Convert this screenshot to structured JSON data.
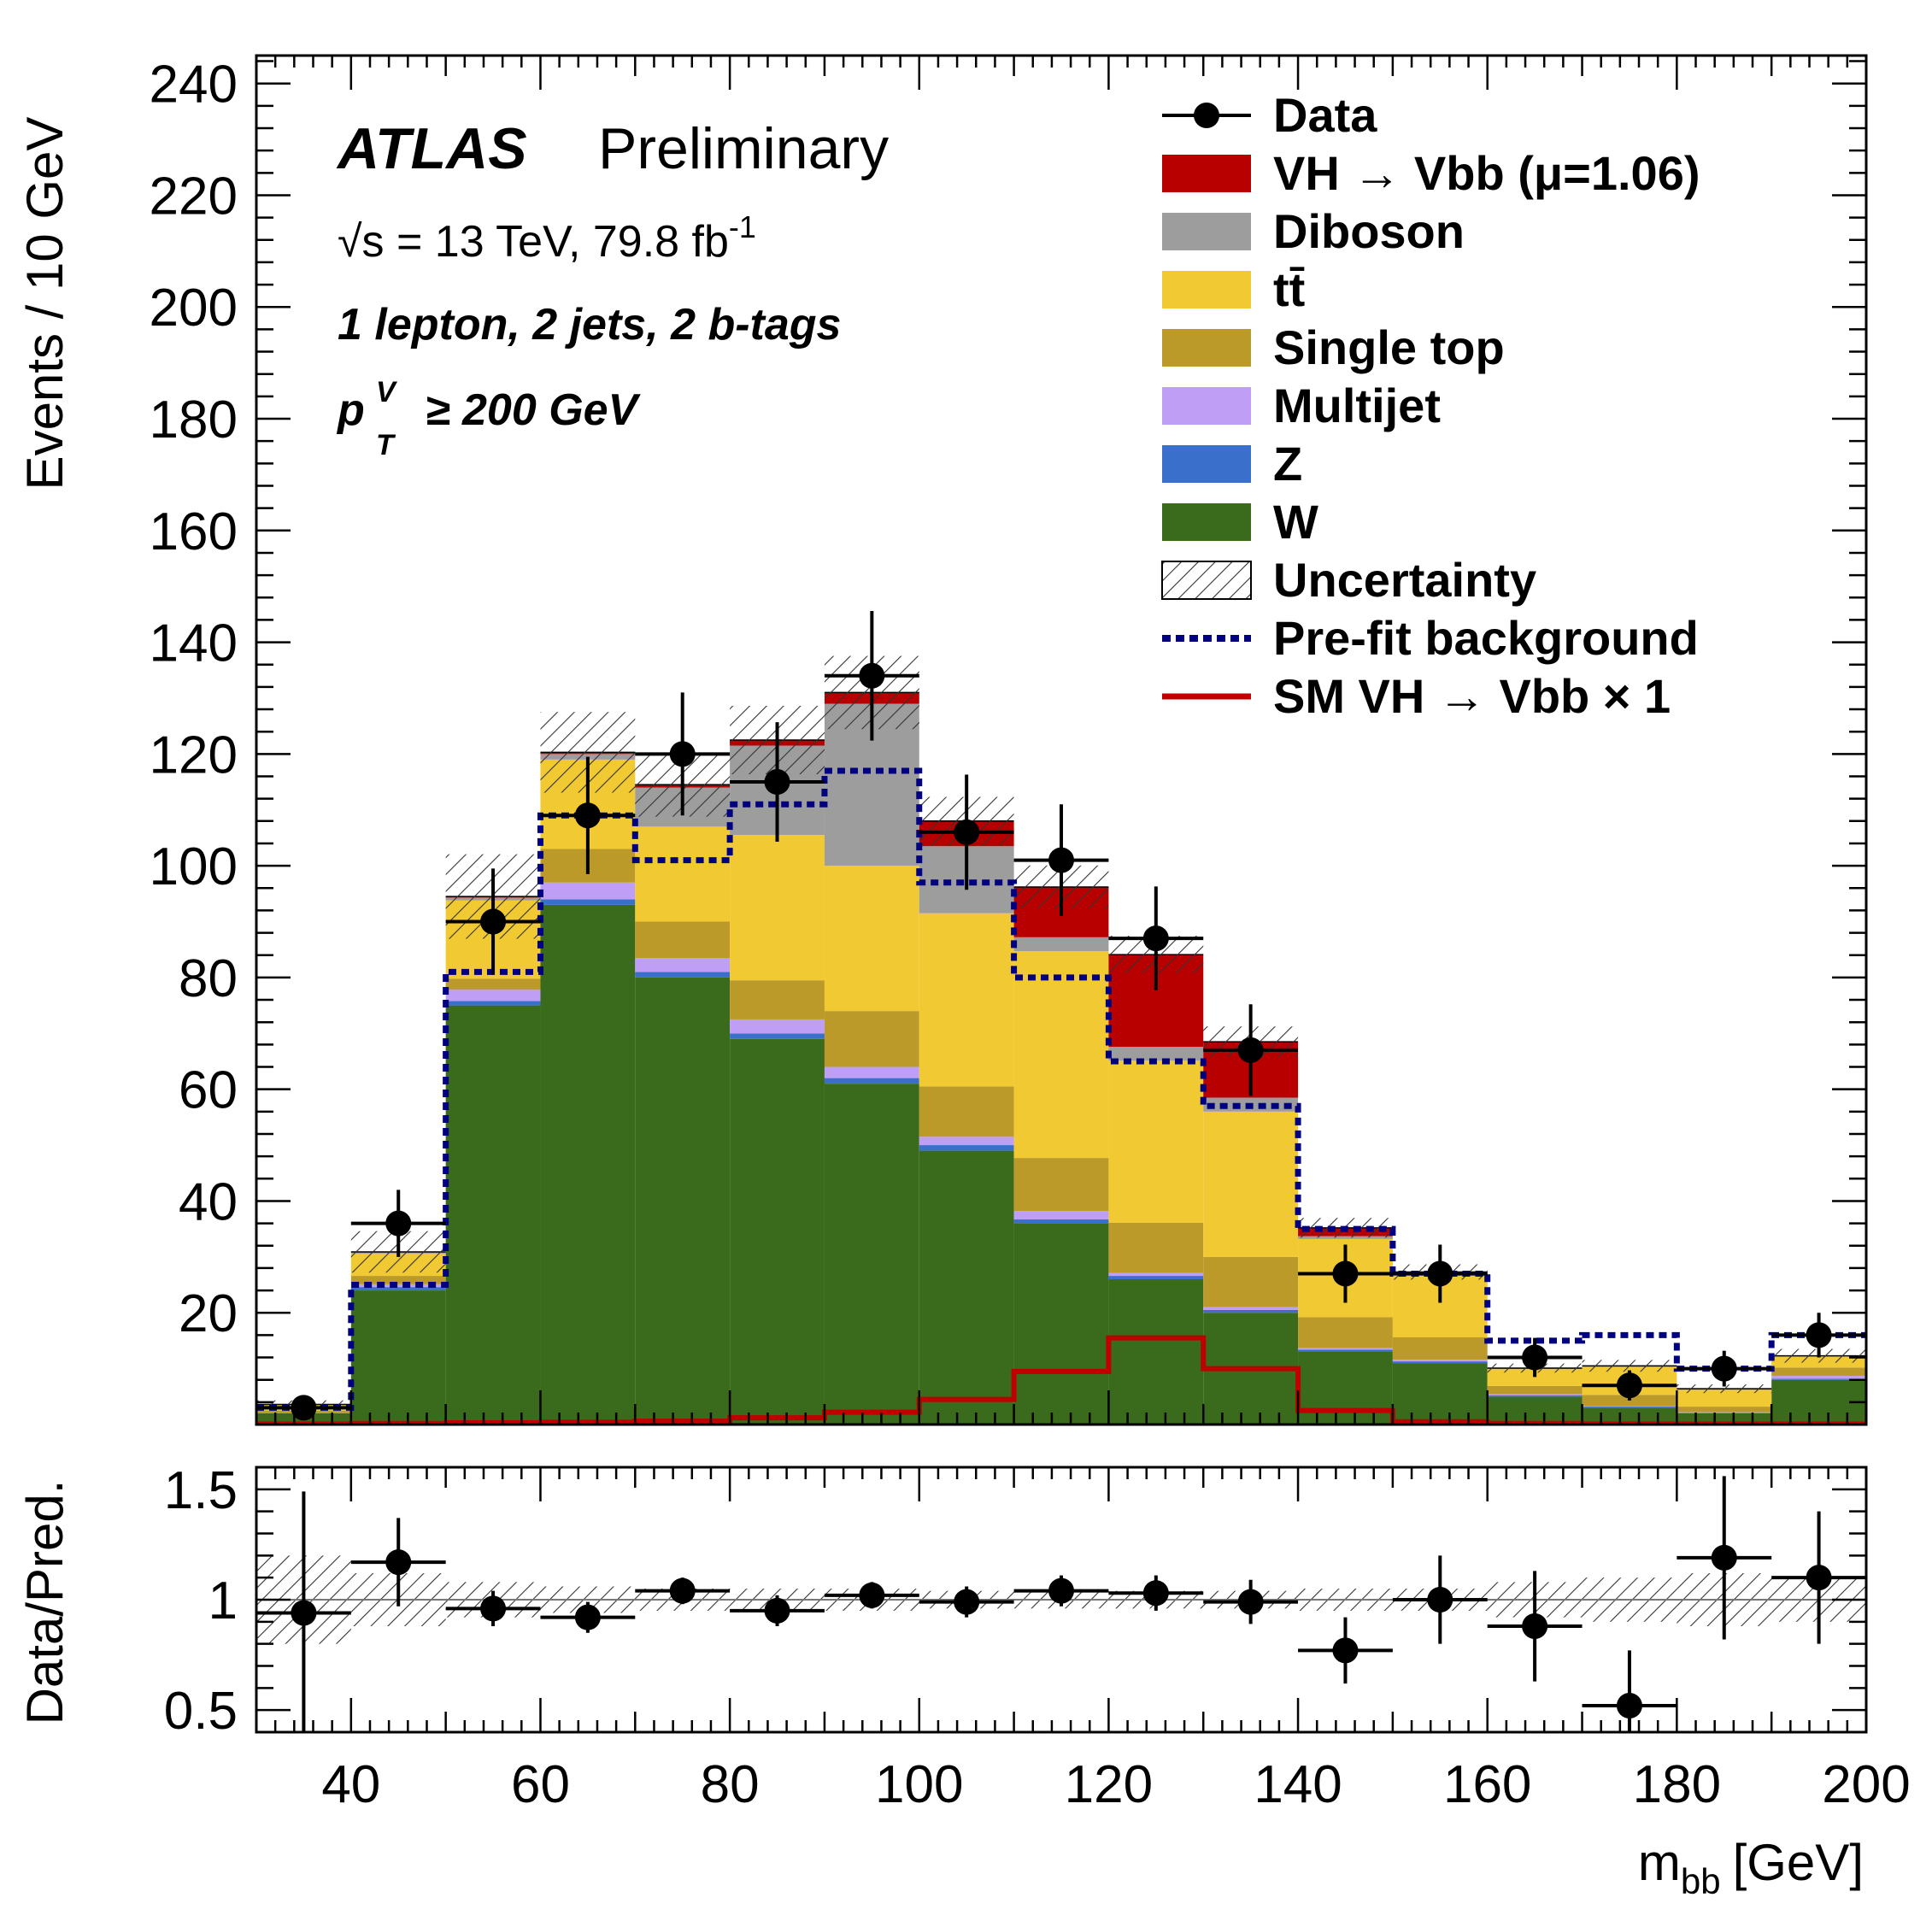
{
  "chart_data": {
    "type": "stacked-histogram",
    "experiment": "ATLAS",
    "status": "Preliminary",
    "energy_lumi_prefix": "√s = 13 TeV, 79.8 fb",
    "lumi_exponent": "-1",
    "region": "1 lepton, 2 jets, 2 b-tags",
    "ptv_symbol": "p",
    "ptv_sub": "T",
    "ptv_sup": "V",
    "ptv_cut": "≥ 200 GeV",
    "xlabel": "m",
    "xlabel_sub": "bb",
    "xlabel_unit": "[GeV]",
    "ylabel": "Events / 10 GeV",
    "ratio_ylabel": "Data/Pred.",
    "xlim": [
      30,
      200
    ],
    "ylim": [
      0,
      245
    ],
    "ratio_ylim": [
      0.4,
      1.6
    ],
    "x_ticks": [
      "40",
      "60",
      "80",
      "100",
      "120",
      "140",
      "160",
      "180",
      "200"
    ],
    "y_ticks": [
      "20",
      "40",
      "60",
      "80",
      "100",
      "120",
      "140",
      "160",
      "180",
      "200",
      "220",
      "240"
    ],
    "ratio_ticks": [
      "0.5",
      "1",
      "1.5"
    ],
    "bin_edges": [
      30,
      40,
      50,
      60,
      70,
      80,
      90,
      100,
      110,
      120,
      130,
      140,
      150,
      160,
      170,
      180,
      190,
      200
    ],
    "stack_order": [
      "W",
      "Z",
      "Multijet",
      "Single top",
      "tt",
      "Diboson",
      "VH"
    ],
    "series": [
      {
        "key": "W",
        "color": "#3a6a1c",
        "values": [
          2,
          24,
          75,
          93,
          80,
          69,
          61,
          49,
          36,
          26,
          20,
          13,
          11,
          5,
          3,
          2,
          8
        ]
      },
      {
        "key": "Z",
        "color": "#3b6fcc",
        "values": [
          0,
          0.6,
          0.8,
          1,
          1,
          1,
          1,
          1,
          0.7,
          0.6,
          0.5,
          0.4,
          0.3,
          0.2,
          0.2,
          0.1,
          0.2
        ]
      },
      {
        "key": "Multijet",
        "color": "#bf9ff5",
        "values": [
          0,
          0.5,
          2,
          3,
          2.5,
          2.5,
          2,
          1.5,
          1.5,
          0.5,
          0.5,
          0.3,
          0.3,
          0.2,
          0.1,
          0.1,
          0.5
        ]
      },
      {
        "key": "Single top",
        "color": "#bc9a2a",
        "values": [
          0.5,
          1.5,
          2,
          6,
          6.5,
          7,
          10,
          9,
          9.5,
          9,
          9,
          5.5,
          4,
          1.5,
          2,
          1,
          1.5
        ]
      },
      {
        "key": "tt",
        "color": "#f1c932",
        "values": [
          1,
          4,
          14,
          16,
          17,
          26,
          26,
          31,
          37,
          29,
          26,
          14,
          11,
          3,
          5,
          3,
          2
        ]
      },
      {
        "key": "Diboson",
        "color": "#9d9d9d",
        "values": [
          0.1,
          0.3,
          0.5,
          1,
          7,
          16,
          29,
          12,
          2.5,
          2.5,
          2.5,
          0.5,
          0.3,
          0.1,
          0.1,
          0.1,
          0.1
        ]
      },
      {
        "key": "VH",
        "color": "#b80000",
        "values": [
          0,
          0,
          0.2,
          0.3,
          0.5,
          1,
          2,
          4.5,
          9,
          16.5,
          10,
          1.5,
          0.4,
          0.1,
          0.1,
          0.1,
          0
        ]
      }
    ],
    "prefit_background": [
      3,
      25,
      81,
      109,
      101,
      111,
      117,
      97,
      80,
      65,
      57,
      35,
      27,
      15,
      16,
      10,
      16
    ],
    "sm_vh": [
      0.1,
      0.2,
      0.3,
      0.4,
      0.6,
      1.2,
      2.2,
      4.5,
      9.5,
      15.5,
      10,
      2.5,
      0.5,
      0.2,
      0.1,
      0.1,
      0.1
    ],
    "uncertainty_fraction": [
      0.2,
      0.12,
      0.08,
      0.06,
      0.05,
      0.05,
      0.05,
      0.04,
      0.04,
      0.04,
      0.04,
      0.05,
      0.05,
      0.08,
      0.1,
      0.12,
      0.1
    ],
    "data": {
      "x": [
        35,
        45,
        55,
        65,
        75,
        85,
        95,
        105,
        115,
        125,
        135,
        145,
        155,
        165,
        175,
        185,
        195
      ],
      "y": [
        3,
        36,
        90,
        109,
        120,
        115,
        134,
        106,
        101,
        87,
        67,
        27,
        27,
        12,
        7,
        10,
        16
      ],
      "err": [
        1.8,
        6,
        9.5,
        10.5,
        11,
        10.7,
        11.6,
        10.3,
        10,
        9.3,
        8.2,
        5.2,
        5.2,
        3.5,
        2.7,
        3.2,
        4
      ]
    },
    "ratio": {
      "y": [
        0.94,
        1.17,
        0.96,
        0.92,
        1.04,
        0.95,
        1.02,
        0.99,
        1.04,
        1.03,
        0.99,
        0.77,
        1.0,
        0.88,
        0.52,
        1.19,
        1.1
      ],
      "err": [
        0.55,
        0.2,
        0.08,
        0.07,
        0.06,
        0.07,
        0.06,
        0.07,
        0.07,
        0.08,
        0.1,
        0.15,
        0.2,
        0.25,
        0.25,
        0.37,
        0.3
      ]
    },
    "legend": {
      "placement": "top-right",
      "entries": [
        {
          "key": "Data",
          "label": "Data",
          "style": "marker"
        },
        {
          "key": "VH",
          "label": "VH  → Vbb (μ=1.06)",
          "style": "fill"
        },
        {
          "key": "Diboson",
          "label": "Diboson",
          "style": "fill"
        },
        {
          "key": "tt",
          "label": "tt̄",
          "style": "fill"
        },
        {
          "key": "Single top",
          "label": "Single top",
          "style": "fill"
        },
        {
          "key": "Multijet",
          "label": "Multijet",
          "style": "fill"
        },
        {
          "key": "Z",
          "label": "Z",
          "style": "fill"
        },
        {
          "key": "W",
          "label": "W",
          "style": "fill"
        },
        {
          "key": "Uncertainty",
          "label": "Uncertainty",
          "style": "hatch"
        },
        {
          "key": "Prefit",
          "label": "Pre-fit background",
          "style": "dotted"
        },
        {
          "key": "SMVH",
          "label": "SM VH  → Vbb  × 1",
          "style": "line"
        }
      ]
    },
    "colors": {
      "prefit": "#000080",
      "sm_vh": "#c00000",
      "data": "#000000"
    }
  }
}
